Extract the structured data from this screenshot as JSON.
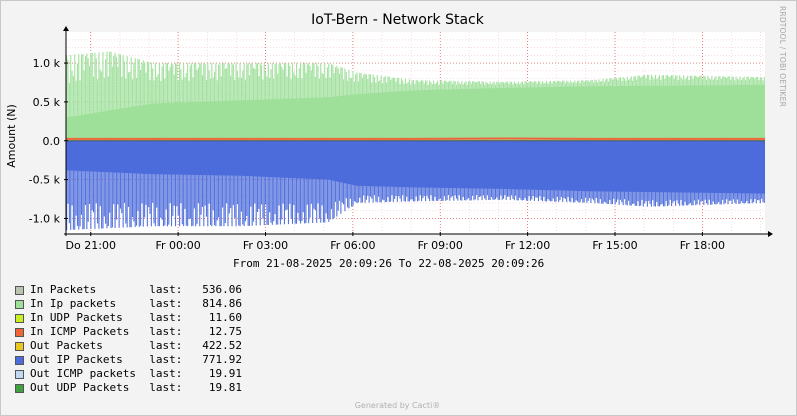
{
  "window": {
    "title": "IoT-Bern - Network Stack",
    "watermark": "RRDTOOL / TOBI OETIKER",
    "range_text": "From 21-08-2025 20:09:26 To 22-08-2025 20:09:26",
    "generated": "Generated by Cacti®"
  },
  "legend": [
    {
      "label": "In Packets",
      "last_label": "last:",
      "value": "536.06",
      "color": "#B8C4B0"
    },
    {
      "label": "In Ip packets",
      "last_label": "last:",
      "value": "814.86",
      "color": "#9EE09A"
    },
    {
      "label": "In UDP Packets",
      "last_label": "last:",
      "value": "11.60",
      "color": "#C8F020"
    },
    {
      "label": "In ICMP Packets",
      "last_label": "last:",
      "value": "12.75",
      "color": "#F06438"
    },
    {
      "label": "Out Packets",
      "last_label": "last:",
      "value": "422.52",
      "color": "#E8C820"
    },
    {
      "label": "Out IP Packets",
      "last_label": "last:",
      "value": "771.92",
      "color": "#4C6CDC"
    },
    {
      "label": "Out ICMP packets",
      "last_label": "last:",
      "value": "19.91",
      "color": "#C0D8F0"
    },
    {
      "label": "Out UDP Packets",
      "last_label": "last:",
      "value": "19.81",
      "color": "#40A040"
    }
  ],
  "chart_data": {
    "type": "area",
    "title": "IoT-Bern - Network Stack",
    "ylabel": "Amount (N)",
    "xlabel": "",
    "x_tick_labels": [
      "Do 21:00",
      "Fr 00:00",
      "Fr 03:00",
      "Fr 06:00",
      "Fr 09:00",
      "Fr 12:00",
      "Fr 15:00",
      "Fr 18:00"
    ],
    "y_tick_labels": [
      "1.0 k",
      "0.5 k",
      "0.0",
      "-0.5 k",
      "-1.0 k"
    ],
    "y_ticks": [
      1000,
      500,
      0,
      -500,
      -1000
    ],
    "ylim": [
      -1200,
      1400
    ],
    "x_ticks_hours": [
      0.85,
      3.85,
      6.85,
      9.85,
      12.85,
      15.85,
      18.85,
      21.85
    ],
    "xlim_hours": [
      0,
      24
    ],
    "grid": true,
    "series": [
      {
        "name": "In Ip packets",
        "color": "#9EE09A",
        "upper_envelope": [
          [
            0,
            1100
          ],
          [
            1.5,
            1150
          ],
          [
            3,
            1000
          ],
          [
            6,
            1000
          ],
          [
            9,
            1000
          ],
          [
            10,
            880
          ],
          [
            12,
            780
          ],
          [
            15,
            760
          ],
          [
            18,
            780
          ],
          [
            20,
            850
          ],
          [
            24,
            820
          ]
        ],
        "lower_envelope": [
          [
            0,
            300
          ],
          [
            3,
            480
          ],
          [
            6,
            520
          ],
          [
            9,
            560
          ],
          [
            10,
            600
          ],
          [
            12,
            650
          ],
          [
            15,
            680
          ],
          [
            18,
            700
          ],
          [
            24,
            720
          ]
        ]
      },
      {
        "name": "In ICMP Packets",
        "color": "#F06438",
        "values": [
          [
            0,
            25
          ],
          [
            12,
            25
          ],
          [
            15,
            30
          ],
          [
            18,
            25
          ],
          [
            24,
            25
          ]
        ]
      },
      {
        "name": "Out IP Packets",
        "color": "#4C6CDC",
        "upper_envelope": [
          [
            0,
            -380
          ],
          [
            3,
            -430
          ],
          [
            6,
            -450
          ],
          [
            9,
            -500
          ],
          [
            10,
            -580
          ],
          [
            12,
            -600
          ],
          [
            15,
            -620
          ],
          [
            18,
            -650
          ],
          [
            24,
            -680
          ]
        ],
        "lower_envelope": [
          [
            0,
            -1150
          ],
          [
            3,
            -1100
          ],
          [
            6,
            -1100
          ],
          [
            9,
            -1050
          ],
          [
            10,
            -800
          ],
          [
            12,
            -780
          ],
          [
            15,
            -760
          ],
          [
            18,
            -800
          ],
          [
            20,
            -850
          ],
          [
            24,
            -800
          ]
        ]
      }
    ]
  }
}
